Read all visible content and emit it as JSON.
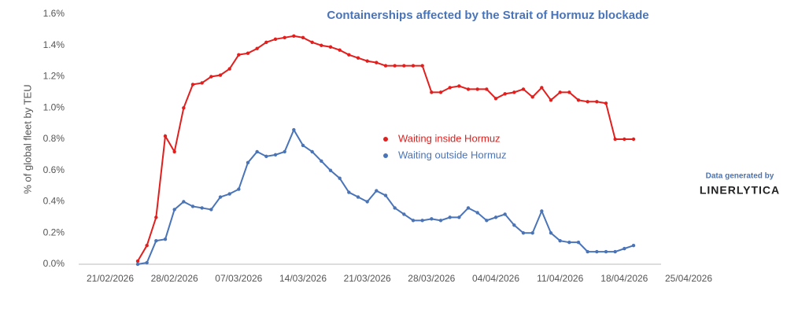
{
  "chart_data": {
    "type": "line",
    "title": "Containerships affected by the Strait of Hormuz blockade",
    "y_label": "% of global fleet by TEU",
    "annotations": [
      "Data generated by",
      "LINERLYTICA"
    ],
    "x": [
      "2026-02-24",
      "2026-02-25",
      "2026-02-26",
      "2026-02-27",
      "2026-02-28",
      "2026-03-01",
      "2026-03-02",
      "2026-03-03",
      "2026-03-04",
      "2026-03-05",
      "2026-03-06",
      "2026-03-07",
      "2026-03-08",
      "2026-03-09",
      "2026-03-10",
      "2026-03-11",
      "2026-03-12",
      "2026-03-13",
      "2026-03-14",
      "2026-03-15",
      "2026-03-16",
      "2026-03-17",
      "2026-03-18",
      "2026-03-19",
      "2026-03-20",
      "2026-03-21",
      "2026-03-22",
      "2026-03-23",
      "2026-03-24",
      "2026-03-25",
      "2026-03-26",
      "2026-03-27",
      "2026-03-28",
      "2026-03-29",
      "2026-03-30",
      "2026-03-31",
      "2026-04-01",
      "2026-04-02",
      "2026-04-03",
      "2026-04-04",
      "2026-04-05",
      "2026-04-06",
      "2026-04-07",
      "2026-04-08",
      "2026-04-09",
      "2026-04-10",
      "2026-04-11",
      "2026-04-12",
      "2026-04-13",
      "2026-04-14",
      "2026-04-15",
      "2026-04-16",
      "2026-04-17",
      "2026-04-18",
      "2026-04-19"
    ],
    "series": [
      {
        "name": "Waiting inside Hormuz",
        "color": "#e0201e",
        "values": [
          0.02,
          0.12,
          0.3,
          0.82,
          0.72,
          1.0,
          1.15,
          1.16,
          1.2,
          1.21,
          1.25,
          1.34,
          1.35,
          1.38,
          1.42,
          1.44,
          1.45,
          1.46,
          1.45,
          1.42,
          1.4,
          1.39,
          1.37,
          1.34,
          1.32,
          1.3,
          1.29,
          1.27,
          1.27,
          1.27,
          1.27,
          1.27,
          1.1,
          1.1,
          1.13,
          1.14,
          1.12,
          1.12,
          1.12,
          1.06,
          1.09,
          1.1,
          1.12,
          1.07,
          1.13,
          1.05,
          1.1,
          1.1,
          1.05,
          1.04,
          1.04,
          1.03,
          0.8,
          0.8,
          0.8
        ]
      },
      {
        "name": "Waiting outside Hormuz",
        "color": "#4a74b8",
        "values": [
          0.0,
          0.01,
          0.15,
          0.16,
          0.35,
          0.4,
          0.37,
          0.36,
          0.35,
          0.43,
          0.45,
          0.48,
          0.65,
          0.72,
          0.69,
          0.7,
          0.72,
          0.86,
          0.76,
          0.72,
          0.66,
          0.6,
          0.55,
          0.46,
          0.43,
          0.4,
          0.47,
          0.44,
          0.36,
          0.32,
          0.28,
          0.28,
          0.29,
          0.28,
          0.3,
          0.3,
          0.36,
          0.33,
          0.28,
          0.3,
          0.32,
          0.25,
          0.2,
          0.2,
          0.34,
          0.2,
          0.15,
          0.14,
          0.14,
          0.08,
          0.08,
          0.08,
          0.08,
          0.1,
          0.12
        ]
      }
    ],
    "xlim": [
      "2026-02-21",
      "2026-04-25"
    ],
    "xticks": [
      {
        "value": "2026-02-21",
        "label": "21/02/2026"
      },
      {
        "value": "2026-02-28",
        "label": "28/02/2026"
      },
      {
        "value": "2026-03-07",
        "label": "07/03/2026"
      },
      {
        "value": "2026-03-14",
        "label": "14/03/2026"
      },
      {
        "value": "2026-03-21",
        "label": "21/03/2026"
      },
      {
        "value": "2026-03-28",
        "label": "28/03/2026"
      },
      {
        "value": "2026-04-04",
        "label": "04/04/2026"
      },
      {
        "value": "2026-04-11",
        "label": "11/04/2026"
      },
      {
        "value": "2026-04-18",
        "label": "18/04/2026"
      },
      {
        "value": "2026-04-25",
        "label": "25/04/2026"
      }
    ],
    "ylim": [
      0,
      1.6
    ],
    "yticks": [
      {
        "value": 0,
        "label": "0.0%"
      },
      {
        "value": 0.2,
        "label": "0.2%"
      },
      {
        "value": 0.4,
        "label": "0.4%"
      },
      {
        "value": 0.6,
        "label": "0.6%"
      },
      {
        "value": 0.8,
        "label": "0.8%"
      },
      {
        "value": 1.0,
        "label": "1.0%"
      },
      {
        "value": 1.2,
        "label": "1.2%"
      },
      {
        "value": 1.4,
        "label": "1.4%"
      },
      {
        "value": 1.6,
        "label": "1.6%"
      }
    ],
    "grid": false
  }
}
